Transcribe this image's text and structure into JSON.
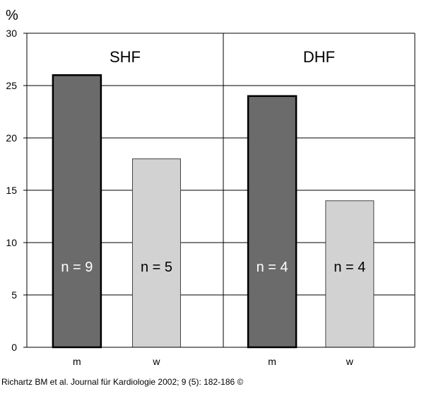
{
  "chart_data": {
    "type": "bar",
    "ylabel": "%",
    "ylim": [
      0,
      30
    ],
    "yticks": [
      "0",
      "5",
      "10",
      "15",
      "20",
      "25",
      "30"
    ],
    "grid": true,
    "groups": [
      {
        "name": "SHF",
        "bars": [
          {
            "category": "m",
            "value": 26,
            "label": "n = 9",
            "color": "#6b6b6b"
          },
          {
            "category": "w",
            "value": 18,
            "label": "n = 5",
            "color": "#d2d2d2"
          }
        ]
      },
      {
        "name": "DHF",
        "bars": [
          {
            "category": "m",
            "value": 24,
            "label": "n = 4",
            "color": "#6b6b6b"
          },
          {
            "category": "w",
            "value": 14,
            "label": "n = 4",
            "color": "#d2d2d2"
          }
        ]
      }
    ]
  },
  "source": "Richartz BM et al. Journal für Kardiologie 2002; 9 (5): 182-186 ©"
}
